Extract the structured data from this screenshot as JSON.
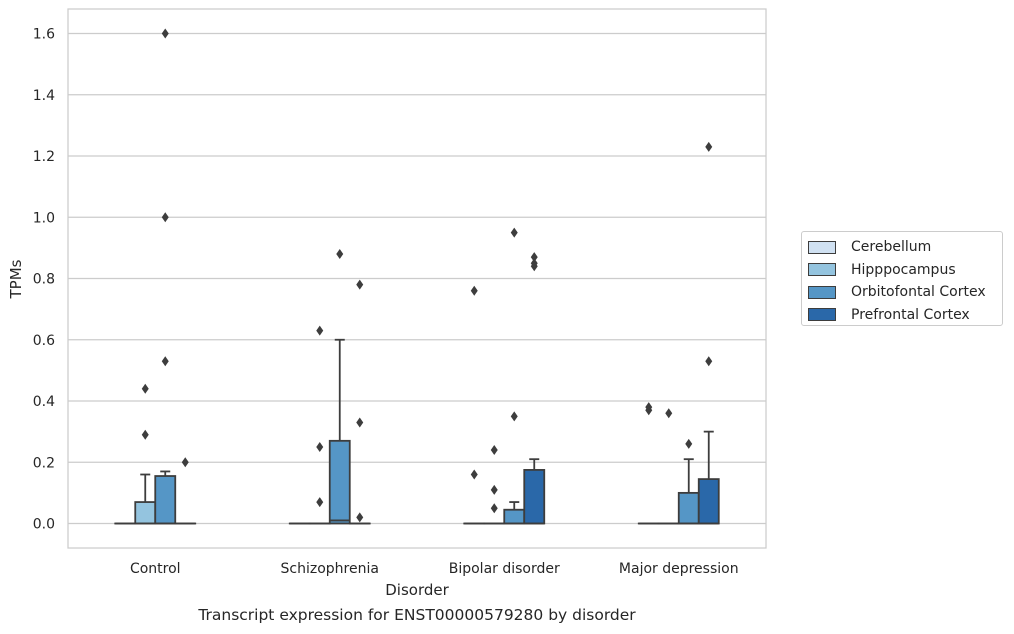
{
  "chart_data": {
    "type": "box",
    "caption": "Transcript expression for ENST00000579280 by disorder",
    "xlabel": "Disorder",
    "ylabel": "TPMs",
    "ylim": [
      -0.08,
      1.68
    ],
    "yticks": [
      "0.0",
      "0.2",
      "0.4",
      "0.6",
      "0.8",
      "1.0",
      "1.2",
      "1.4",
      "1.6"
    ],
    "categories": [
      "Control",
      "Schizophrenia",
      "Bipolar disorder",
      "Major depression"
    ],
    "grid": true,
    "legend_position": "outside-right",
    "series": [
      {
        "name": "Cerebellum",
        "color": "#d0e1f2",
        "boxes": [
          {
            "q1": 0,
            "median": 0,
            "q3": 0,
            "whisker_low": 0,
            "whisker_high": 0,
            "outliers": []
          },
          {
            "q1": 0,
            "median": 0,
            "q3": 0,
            "whisker_low": 0,
            "whisker_high": 0,
            "outliers": []
          },
          {
            "q1": 0,
            "median": 0,
            "q3": 0,
            "whisker_low": 0,
            "whisker_high": 0,
            "outliers": [
              0.16,
              0.76
            ]
          },
          {
            "q1": 0,
            "median": 0,
            "q3": 0,
            "whisker_low": 0,
            "whisker_high": 0,
            "outliers": [
              0.37,
              0.38
            ]
          }
        ]
      },
      {
        "name": "Hipppocampus",
        "color": "#94c4df",
        "boxes": [
          {
            "q1": 0,
            "median": 0,
            "q3": 0.07,
            "whisker_low": 0,
            "whisker_high": 0.16,
            "outliers": [
              0.29,
              0.44
            ]
          },
          {
            "q1": 0,
            "median": 0,
            "q3": 0,
            "whisker_low": 0,
            "whisker_high": 0,
            "outliers": [
              0.07,
              0.25,
              0.63
            ]
          },
          {
            "q1": 0,
            "median": 0,
            "q3": 0,
            "whisker_low": 0,
            "whisker_high": 0,
            "outliers": [
              0.05,
              0.11,
              0.24
            ]
          },
          {
            "q1": 0,
            "median": 0,
            "q3": 0,
            "whisker_low": 0,
            "whisker_high": 0,
            "outliers": [
              0.36
            ]
          }
        ]
      },
      {
        "name": "Orbitofontal Cortex",
        "color": "#5596c6",
        "boxes": [
          {
            "q1": 0,
            "median": 0,
            "q3": 0.155,
            "whisker_low": 0,
            "whisker_high": 0.17,
            "outliers": [
              0.53,
              1.0,
              1.6
            ]
          },
          {
            "q1": 0,
            "median": 0.01,
            "q3": 0.27,
            "whisker_low": 0,
            "whisker_high": 0.6,
            "outliers": [
              0.88
            ]
          },
          {
            "q1": 0,
            "median": 0,
            "q3": 0.045,
            "whisker_low": 0,
            "whisker_high": 0.07,
            "outliers": [
              0.35,
              0.95
            ]
          },
          {
            "q1": 0,
            "median": 0,
            "q3": 0.1,
            "whisker_low": 0,
            "whisker_high": 0.21,
            "outliers": [
              0.26
            ]
          }
        ]
      },
      {
        "name": "Prefrontal Cortex",
        "color": "#2a68a9",
        "boxes": [
          {
            "q1": 0,
            "median": 0,
            "q3": 0,
            "whisker_low": 0,
            "whisker_high": 0,
            "outliers": [
              0.2
            ]
          },
          {
            "q1": 0,
            "median": 0,
            "q3": 0,
            "whisker_low": 0,
            "whisker_high": 0,
            "outliers": [
              0.02,
              0.33,
              0.78
            ]
          },
          {
            "q1": 0,
            "median": 0,
            "q3": 0.175,
            "whisker_low": 0,
            "whisker_high": 0.21,
            "outliers": [
              0.84,
              0.85,
              0.87
            ]
          },
          {
            "q1": 0,
            "median": 0,
            "q3": 0.145,
            "whisker_low": 0,
            "whisker_high": 0.3,
            "outliers": [
              0.53,
              1.23
            ]
          }
        ]
      }
    ]
  }
}
